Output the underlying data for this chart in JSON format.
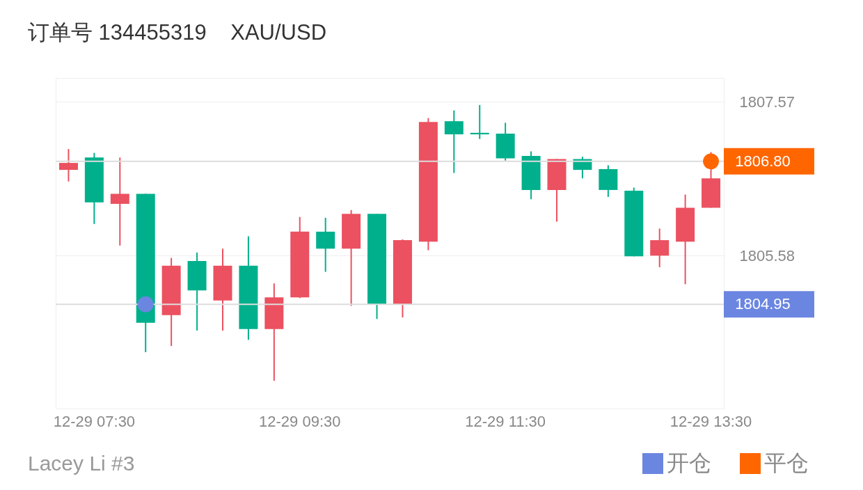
{
  "chart_data": {
    "type": "candlestick",
    "title": "订单号 134455319    XAU/USD",
    "categories": [
      null,
      "12-29 07:30",
      null,
      null,
      null,
      null,
      null,
      null,
      null,
      "12-29 09:30",
      null,
      null,
      null,
      null,
      null,
      null,
      null,
      "12-29 11:30",
      null,
      null,
      null,
      null,
      null,
      null,
      null,
      "12-29 13:30"
    ],
    "ohlc": [
      [
        1806.69,
        1806.96,
        1806.54,
        1806.78
      ],
      [
        1806.85,
        1806.91,
        1805.99,
        1806.27
      ],
      [
        1806.25,
        1806.85,
        1805.71,
        1806.38
      ],
      [
        1806.38,
        1806.38,
        1804.33,
        1804.71
      ],
      [
        1804.81,
        1805.55,
        1804.41,
        1805.45
      ],
      [
        1805.51,
        1805.62,
        1804.61,
        1805.13
      ],
      [
        1805.0,
        1805.67,
        1804.61,
        1805.45
      ],
      [
        1805.45,
        1805.83,
        1804.49,
        1804.63
      ],
      [
        1804.63,
        1805.22,
        1803.96,
        1805.04
      ],
      [
        1805.04,
        1806.08,
        1805.03,
        1805.89
      ],
      [
        1805.89,
        1806.07,
        1805.37,
        1805.67
      ],
      [
        1805.67,
        1806.17,
        1804.93,
        1806.12
      ],
      [
        1806.12,
        1806.12,
        1804.76,
        1804.95
      ],
      [
        1804.95,
        1805.79,
        1804.78,
        1805.78
      ],
      [
        1805.76,
        1807.36,
        1805.65,
        1807.31
      ],
      [
        1807.32,
        1807.46,
        1806.65,
        1807.15
      ],
      [
        1807.17,
        1807.53,
        1807.09,
        1807.15
      ],
      [
        1807.16,
        1807.3,
        1806.81,
        1806.84
      ],
      [
        1806.87,
        1806.93,
        1806.31,
        1806.43
      ],
      [
        1806.43,
        1806.83,
        1806.02,
        1806.83
      ],
      [
        1806.83,
        1806.86,
        1806.58,
        1806.69
      ],
      [
        1806.7,
        1806.75,
        1806.34,
        1806.43
      ],
      [
        1806.42,
        1806.46,
        1805.57,
        1805.57
      ],
      [
        1805.58,
        1805.93,
        1805.43,
        1805.78
      ],
      [
        1805.76,
        1806.37,
        1805.21,
        1806.2
      ],
      [
        1806.2,
        1806.92,
        1806.2,
        1806.58
      ]
    ],
    "colors": [
      "#eb5160",
      "#00b08c",
      "#eb5160",
      "#00b08c",
      "#eb5160",
      "#00b08c",
      "#eb5160",
      "#00b08c",
      "#eb5160",
      "#eb5160",
      "#00b08c",
      "#eb5160",
      "#00b08c",
      "#eb5160",
      "#eb5160",
      "#00b08c",
      "#00b08c",
      "#00b08c",
      "#00b08c",
      "#eb5160",
      "#00b08c",
      "#00b08c",
      "#00b08c",
      "#eb5160",
      "#eb5160",
      "#eb5160"
    ],
    "series": [
      {
        "type": "scatter",
        "name": "开仓",
        "color": "#6b86e0",
        "values": [
          null,
          null,
          null,
          1804.95,
          null,
          null,
          null,
          null,
          null,
          null,
          null,
          null,
          null,
          null,
          null,
          null,
          null,
          null,
          null,
          null,
          null,
          null,
          null,
          null,
          null,
          null
        ]
      },
      {
        "type": "scatter",
        "name": "平仓",
        "color": "#ff6600",
        "values": [
          null,
          null,
          null,
          null,
          null,
          null,
          null,
          null,
          null,
          null,
          null,
          null,
          null,
          null,
          null,
          null,
          null,
          null,
          null,
          null,
          null,
          null,
          null,
          null,
          null,
          1806.8
        ]
      }
    ],
    "marker": "circle",
    "ylim": [
      1803.6,
      1807.88
    ],
    "yticks": [
      1805.58,
      1807.57
    ],
    "grid": "y",
    "ref_lines": [
      {
        "axis": "y",
        "value": 1806.8,
        "label": "1806.80"
      },
      {
        "axis": "y",
        "value": 1804.95,
        "label": "1804.95"
      }
    ],
    "legend": "bottom right",
    "annotations": [
      "Lacey Li #3"
    ]
  }
}
